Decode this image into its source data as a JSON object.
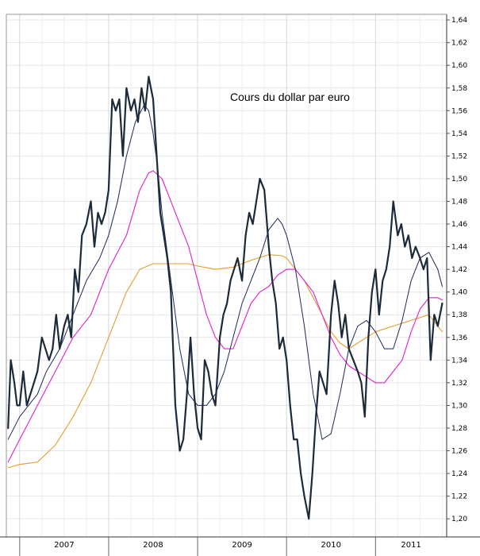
{
  "chart_data": {
    "type": "line",
    "title": "Cours du dollar par euro",
    "xlabel": "",
    "ylabel": "",
    "xlim": [
      2006.85,
      2011.8
    ],
    "ylim": [
      1.184,
      1.645
    ],
    "y_ticks": [
      1.2,
      1.22,
      1.24,
      1.26,
      1.28,
      1.3,
      1.32,
      1.34,
      1.36,
      1.38,
      1.4,
      1.42,
      1.44,
      1.46,
      1.48,
      1.5,
      1.52,
      1.54,
      1.56,
      1.58,
      1.6,
      1.62,
      1.64
    ],
    "y_tick_labels": [
      "1,20",
      "1,22",
      "1,24",
      "1,26",
      "1,28",
      "1,30",
      "1,32",
      "1,34",
      "1,36",
      "1,38",
      "1,40",
      "1,42",
      "1,44",
      "1,46",
      "1,48",
      "1,50",
      "1,52",
      "1,54",
      "1,56",
      "1,58",
      "1,60",
      "1,62",
      "1,64"
    ],
    "x_ticks": [
      2007,
      2008,
      2009,
      2010,
      2011
    ],
    "x_tick_labels": [
      "2007",
      "2008",
      "2009",
      "2010",
      "2011"
    ],
    "grid": true,
    "colors": {
      "price": "#1c2a3a",
      "ma_short": "#1c2a5a",
      "ma_mid": "#e020c8",
      "ma_long": "#e0a030"
    },
    "series": [
      {
        "key": "price",
        "x": [
          2006.87,
          2006.9,
          2006.94,
          2006.97,
          2007.0,
          2007.04,
          2007.08,
          2007.12,
          2007.16,
          2007.2,
          2007.25,
          2007.29,
          2007.33,
          2007.37,
          2007.41,
          2007.45,
          2007.5,
          2007.54,
          2007.58,
          2007.62,
          2007.66,
          2007.7,
          2007.75,
          2007.8,
          2007.84,
          2007.88,
          2007.92,
          2007.96,
          2008.0,
          2008.04,
          2008.08,
          2008.12,
          2008.16,
          2008.2,
          2008.25,
          2008.29,
          2008.33,
          2008.37,
          2008.41,
          2008.45,
          2008.5,
          2008.54,
          2008.58,
          2008.62,
          2008.66,
          2008.7,
          2008.75,
          2008.8,
          2008.84,
          2008.88,
          2008.92,
          2008.96,
          2009.0,
          2009.04,
          2009.08,
          2009.12,
          2009.16,
          2009.2,
          2009.25,
          2009.29,
          2009.33,
          2009.37,
          2009.41,
          2009.45,
          2009.5,
          2009.54,
          2009.58,
          2009.62,
          2009.66,
          2009.7,
          2009.75,
          2009.8,
          2009.84,
          2009.88,
          2009.92,
          2009.96,
          2010.0,
          2010.04,
          2010.08,
          2010.12,
          2010.16,
          2010.2,
          2010.25,
          2010.29,
          2010.33,
          2010.37,
          2010.41,
          2010.45,
          2010.5,
          2010.54,
          2010.58,
          2010.62,
          2010.66,
          2010.7,
          2010.75,
          2010.8,
          2010.84,
          2010.88,
          2010.92,
          2010.96,
          2011.0,
          2011.04,
          2011.08,
          2011.12,
          2011.16,
          2011.2,
          2011.25,
          2011.29,
          2011.33,
          2011.37,
          2011.41,
          2011.45,
          2011.5,
          2011.54,
          2011.58,
          2011.62,
          2011.66,
          2011.7,
          2011.75
        ],
        "y": [
          1.28,
          1.34,
          1.32,
          1.3,
          1.3,
          1.33,
          1.3,
          1.31,
          1.32,
          1.33,
          1.36,
          1.35,
          1.34,
          1.35,
          1.38,
          1.35,
          1.37,
          1.38,
          1.36,
          1.42,
          1.4,
          1.45,
          1.46,
          1.48,
          1.44,
          1.47,
          1.46,
          1.47,
          1.49,
          1.57,
          1.56,
          1.57,
          1.52,
          1.58,
          1.56,
          1.57,
          1.55,
          1.58,
          1.56,
          1.59,
          1.57,
          1.52,
          1.47,
          1.45,
          1.43,
          1.4,
          1.3,
          1.26,
          1.27,
          1.31,
          1.36,
          1.31,
          1.28,
          1.27,
          1.34,
          1.33,
          1.31,
          1.3,
          1.36,
          1.38,
          1.39,
          1.41,
          1.42,
          1.43,
          1.41,
          1.45,
          1.47,
          1.46,
          1.48,
          1.5,
          1.49,
          1.44,
          1.41,
          1.39,
          1.35,
          1.36,
          1.34,
          1.3,
          1.27,
          1.27,
          1.24,
          1.22,
          1.2,
          1.24,
          1.29,
          1.33,
          1.32,
          1.31,
          1.38,
          1.41,
          1.39,
          1.36,
          1.38,
          1.35,
          1.34,
          1.33,
          1.32,
          1.29,
          1.36,
          1.4,
          1.42,
          1.38,
          1.41,
          1.42,
          1.44,
          1.48,
          1.45,
          1.46,
          1.44,
          1.45,
          1.43,
          1.44,
          1.43,
          1.42,
          1.43,
          1.34,
          1.38,
          1.37,
          1.39
        ]
      },
      {
        "key": "ma_short",
        "x": [
          2006.87,
          2007.0,
          2007.1,
          2007.2,
          2007.3,
          2007.45,
          2007.6,
          2007.75,
          2007.9,
          2008.0,
          2008.1,
          2008.2,
          2008.3,
          2008.4,
          2008.45,
          2008.5,
          2008.55,
          2008.6,
          2008.7,
          2008.8,
          2008.9,
          2009.0,
          2009.1,
          2009.2,
          2009.3,
          2009.4,
          2009.5,
          2009.6,
          2009.7,
          2009.8,
          2009.9,
          2009.95,
          2010.0,
          2010.1,
          2010.2,
          2010.3,
          2010.4,
          2010.5,
          2010.6,
          2010.7,
          2010.8,
          2010.9,
          2011.0,
          2011.1,
          2011.2,
          2011.3,
          2011.4,
          2011.5,
          2011.6,
          2011.7,
          2011.75
        ],
        "y": [
          1.27,
          1.29,
          1.3,
          1.31,
          1.33,
          1.35,
          1.38,
          1.41,
          1.43,
          1.45,
          1.48,
          1.52,
          1.55,
          1.565,
          1.56,
          1.54,
          1.51,
          1.47,
          1.41,
          1.35,
          1.31,
          1.3,
          1.3,
          1.31,
          1.33,
          1.36,
          1.39,
          1.41,
          1.43,
          1.455,
          1.465,
          1.46,
          1.45,
          1.42,
          1.37,
          1.31,
          1.27,
          1.275,
          1.31,
          1.35,
          1.37,
          1.375,
          1.365,
          1.35,
          1.35,
          1.375,
          1.41,
          1.43,
          1.435,
          1.42,
          1.405
        ]
      },
      {
        "key": "ma_mid",
        "x": [
          2006.87,
          2007.0,
          2007.2,
          2007.4,
          2007.6,
          2007.8,
          2008.0,
          2008.2,
          2008.35,
          2008.45,
          2008.5,
          2008.6,
          2008.7,
          2008.8,
          2008.9,
          2009.0,
          2009.1,
          2009.2,
          2009.3,
          2009.4,
          2009.5,
          2009.6,
          2009.7,
          2009.8,
          2009.9,
          2010.0,
          2010.1,
          2010.2,
          2010.3,
          2010.4,
          2010.5,
          2010.6,
          2010.7,
          2010.8,
          2010.9,
          2011.0,
          2011.1,
          2011.2,
          2011.3,
          2011.4,
          2011.5,
          2011.6,
          2011.7,
          2011.75
        ],
        "y": [
          1.25,
          1.27,
          1.3,
          1.33,
          1.36,
          1.38,
          1.42,
          1.45,
          1.49,
          1.505,
          1.507,
          1.5,
          1.48,
          1.46,
          1.44,
          1.41,
          1.38,
          1.36,
          1.35,
          1.35,
          1.37,
          1.39,
          1.4,
          1.405,
          1.415,
          1.42,
          1.42,
          1.41,
          1.4,
          1.38,
          1.36,
          1.345,
          1.335,
          1.33,
          1.325,
          1.32,
          1.32,
          1.33,
          1.34,
          1.365,
          1.385,
          1.395,
          1.395,
          1.393
        ]
      },
      {
        "key": "ma_long",
        "x": [
          2006.87,
          2007.0,
          2007.2,
          2007.4,
          2007.6,
          2007.8,
          2008.0,
          2008.2,
          2008.35,
          2008.5,
          2008.7,
          2008.9,
          2009.0,
          2009.2,
          2009.4,
          2009.6,
          2009.8,
          2009.95,
          2010.0,
          2010.1,
          2010.2,
          2010.3,
          2010.4,
          2010.5,
          2010.6,
          2010.7,
          2010.8,
          2010.9,
          2011.0,
          2011.2,
          2011.4,
          2011.6,
          2011.7,
          2011.75
        ],
        "y": [
          1.245,
          1.248,
          1.25,
          1.265,
          1.29,
          1.32,
          1.36,
          1.4,
          1.42,
          1.425,
          1.425,
          1.425,
          1.423,
          1.42,
          1.422,
          1.428,
          1.433,
          1.432,
          1.43,
          1.42,
          1.41,
          1.395,
          1.38,
          1.365,
          1.355,
          1.35,
          1.355,
          1.36,
          1.365,
          1.37,
          1.375,
          1.38,
          1.37,
          1.365
        ]
      }
    ]
  }
}
